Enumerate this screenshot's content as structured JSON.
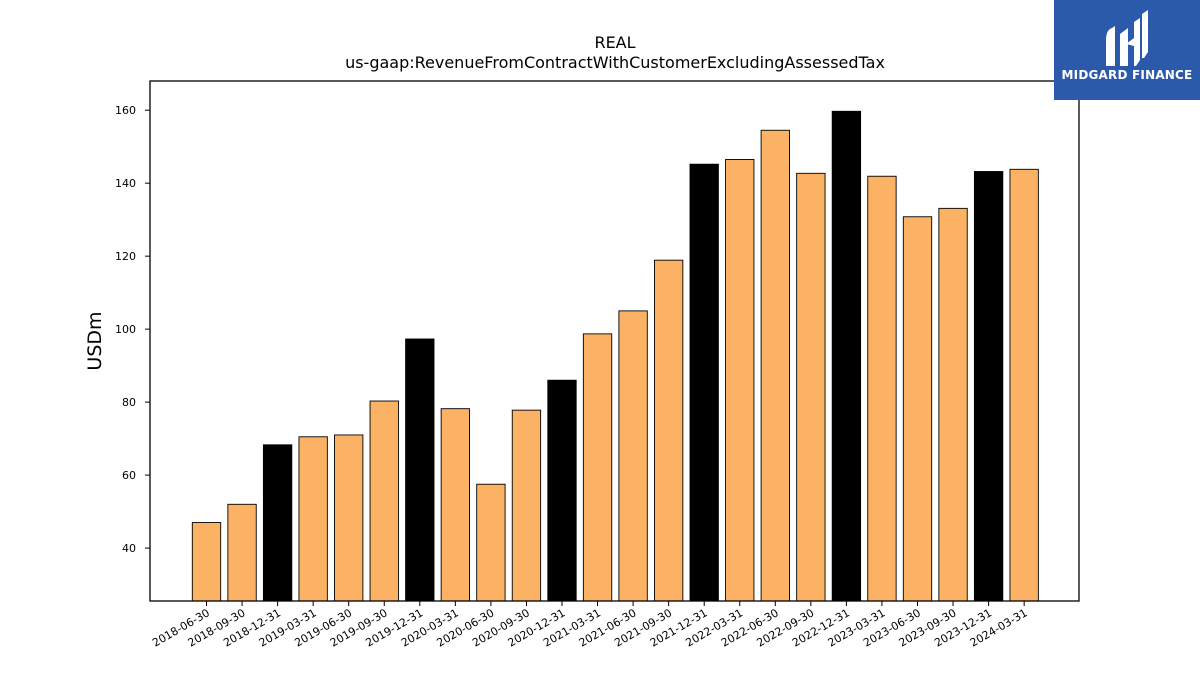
{
  "chart_data": {
    "type": "bar",
    "title": "REAL",
    "subtitle": "us-gaap:RevenueFromContractWithCustomerExcludingAssessedTax",
    "xlabel": "",
    "ylabel": "USDm",
    "ylim": [
      25.5,
      168
    ],
    "yticks": [
      40,
      60,
      80,
      100,
      120,
      140,
      160
    ],
    "grid": false,
    "categories": [
      "2018-06-30",
      "2018-09-30",
      "2018-12-31",
      "2019-03-31",
      "2019-06-30",
      "2019-09-30",
      "2019-12-31",
      "2020-03-31",
      "2020-06-30",
      "2020-09-30",
      "2020-12-31",
      "2021-03-31",
      "2021-06-30",
      "2021-09-30",
      "2021-12-31",
      "2022-03-31",
      "2022-06-30",
      "2022-09-30",
      "2022-12-31",
      "2023-03-31",
      "2023-06-30",
      "2023-09-30",
      "2023-12-31",
      "2024-03-31"
    ],
    "values": [
      47.0,
      52.0,
      68.3,
      70.5,
      71.0,
      80.3,
      97.3,
      78.2,
      57.5,
      77.8,
      86.0,
      98.7,
      105.0,
      118.9,
      145.2,
      146.5,
      154.5,
      142.7,
      159.7,
      141.9,
      130.8,
      133.1,
      143.2,
      143.8
    ],
    "colors": {
      "quarter": "#fbb264",
      "year_end": "#000000",
      "edge": "#000000"
    },
    "year_end_categories": [
      "2018-12-31",
      "2019-12-31",
      "2020-12-31",
      "2021-12-31",
      "2022-12-31",
      "2023-12-31"
    ]
  },
  "logo": {
    "text": "MIDGARD FINANCE",
    "background": "#2b5aab"
  }
}
